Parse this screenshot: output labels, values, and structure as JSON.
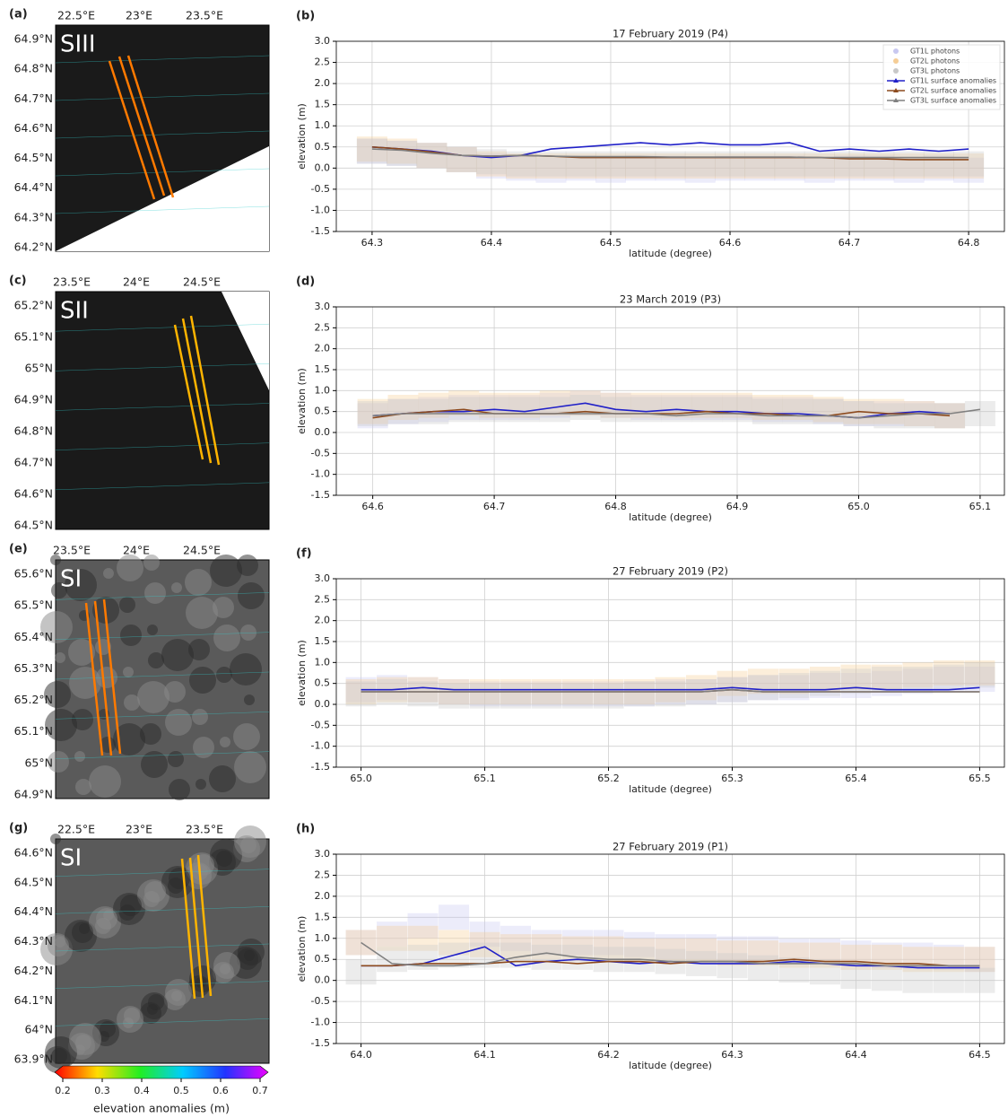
{
  "maps": [
    {
      "label": "(a)",
      "region": "SIII",
      "lon_ticks": [
        "22.5°E",
        "23°E",
        "23.5°E"
      ],
      "lat_ticks": [
        "64.9°N",
        "64.8°N",
        "64.7°N",
        "64.6°N",
        "64.5°N",
        "64.4°N",
        "64.3°N",
        "64.2°N"
      ]
    },
    {
      "label": "(c)",
      "region": "SII",
      "lon_ticks": [
        "23.5°E",
        "24°E",
        "24.5°E"
      ],
      "lat_ticks": [
        "65.2°N",
        "65.1°N",
        "65°N",
        "64.9°N",
        "64.8°N",
        "64.7°N",
        "64.6°N",
        "64.5°N"
      ]
    },
    {
      "label": "(e)",
      "region": "SI",
      "lon_ticks": [
        "23.5°E",
        "24°E",
        "24.5°E"
      ],
      "lat_ticks": [
        "65.6°N",
        "65.5°N",
        "65.4°N",
        "65.3°N",
        "65.2°N",
        "65.1°N",
        "65°N",
        "64.9°N"
      ]
    },
    {
      "label": "(g)",
      "region": "SI",
      "lon_ticks": [
        "22.5°E",
        "23°E",
        "23.5°E"
      ],
      "lat_ticks": [
        "64.6°N",
        "64.5°N",
        "64.4°N",
        "64.3°N",
        "64.2°N",
        "64.1°N",
        "64°N",
        "63.9°N"
      ]
    }
  ],
  "colorbar": {
    "ticks": [
      0.2,
      0.3,
      0.4,
      0.5,
      0.6,
      0.7
    ],
    "range": [
      0.2,
      0.7
    ],
    "label": "elevation anomalies (m)"
  },
  "chart_data": [
    {
      "type": "line",
      "label": "(b)",
      "title": "17 February 2019 (P4)",
      "xlabel": "latitude (degree)",
      "ylabel": "elevation (m)",
      "grid": true,
      "legend": "upper right",
      "x": [
        64.3,
        64.325,
        64.35,
        64.375,
        64.4,
        64.425,
        64.45,
        64.475,
        64.5,
        64.525,
        64.55,
        64.575,
        64.6,
        64.625,
        64.65,
        64.675,
        64.7,
        64.725,
        64.75,
        64.775,
        64.8
      ],
      "xlim": [
        64.27,
        64.83
      ],
      "xticks": [
        64.3,
        64.4,
        64.5,
        64.6,
        64.7,
        64.8
      ],
      "ylim": [
        -1.5,
        3
      ],
      "yticks": [
        -1.5,
        {
          "value": -1,
          "label": "-1.0"
        },
        -0.5,
        {
          "value": 0,
          "label": "0.0"
        },
        0.5,
        {
          "value": 1,
          "label": "1.0"
        },
        1.5,
        {
          "value": 2,
          "label": "2.0"
        },
        2.5,
        {
          "value": 3,
          "label": "3.0"
        }
      ],
      "series": [
        {
          "name": "GT1L photons",
          "kind": "scatter",
          "color": "#c8c8f0",
          "values": [
            0.4,
            0.35,
            0.3,
            0.2,
            0.05,
            0,
            -0.05,
            0,
            -0.05,
            0,
            0,
            -0.05,
            0,
            0,
            0,
            -0.05,
            0,
            0,
            -0.05,
            0,
            -0.05
          ]
        },
        {
          "name": "GT2L photons",
          "kind": "scatter",
          "color": "#f5cd96",
          "values": [
            0.45,
            0.4,
            0.3,
            0.2,
            0.1,
            0.05,
            0.05,
            0.05,
            0.05,
            0.05,
            0.05,
            0.05,
            0.05,
            0.05,
            0.05,
            0.05,
            0.05,
            0.05,
            0.05,
            0.05,
            0.05
          ]
        },
        {
          "name": "GT3L photons",
          "kind": "scatter",
          "color": "#c8c8c8",
          "values": [
            0.4,
            0.35,
            0.3,
            0.2,
            0.15,
            0.1,
            0.1,
            0.1,
            0.1,
            0.1,
            0.1,
            0.1,
            0.1,
            0.1,
            0.1,
            0.1,
            0.1,
            0.1,
            0.1,
            0.1,
            0.1
          ]
        },
        {
          "name": "GT1L surface anomalies",
          "kind": "line",
          "color": "#2020c8",
          "values": [
            0.5,
            0.45,
            0.4,
            0.3,
            0.25,
            0.3,
            0.45,
            0.5,
            0.55,
            0.6,
            0.55,
            0.6,
            0.55,
            0.55,
            0.6,
            0.4,
            0.45,
            0.4,
            0.45,
            0.4,
            0.45
          ]
        },
        {
          "name": "GT2L surface anomalies",
          "kind": "line",
          "color": "#8c4a1e",
          "values": [
            0.5,
            0.45,
            0.38,
            0.3,
            0.28,
            0.3,
            0.28,
            0.25,
            0.25,
            0.25,
            0.25,
            0.25,
            0.25,
            0.25,
            0.25,
            0.25,
            0.22,
            0.22,
            0.2,
            0.2,
            0.2
          ]
        },
        {
          "name": "GT3L surface anomalies",
          "kind": "line",
          "color": "#808080",
          "values": [
            0.45,
            0.42,
            0.35,
            0.3,
            0.28,
            0.3,
            0.28,
            0.27,
            0.27,
            0.27,
            0.26,
            0.26,
            0.26,
            0.26,
            0.26,
            0.25,
            0.25,
            0.25,
            0.25,
            0.25,
            0.25
          ]
        }
      ]
    },
    {
      "type": "line",
      "label": "(d)",
      "title": "23 March 2019 (P3)",
      "xlabel": "latitude (degree)",
      "ylabel": "elevation (m)",
      "grid": true,
      "x": [
        64.6,
        64.625,
        64.65,
        64.675,
        64.7,
        64.725,
        64.75,
        64.775,
        64.8,
        64.825,
        64.85,
        64.875,
        64.9,
        64.925,
        64.95,
        64.975,
        65.0,
        65.025,
        65.05,
        65.075,
        65.1
      ],
      "xlim": [
        64.57,
        65.12
      ],
      "xticks": [
        64.6,
        64.7,
        64.8,
        64.9,
        {
          "value": 65,
          "label": "65.0"
        },
        65.1
      ],
      "ylim": [
        -1.5,
        3
      ],
      "yticks": [
        -1.5,
        {
          "value": -1,
          "label": "-1.0"
        },
        -0.5,
        {
          "value": 0,
          "label": "0.0"
        },
        0.5,
        {
          "value": 1,
          "label": "1.0"
        },
        1.5,
        {
          "value": 2,
          "label": "2.0"
        },
        2.5,
        {
          "value": 3,
          "label": "3.0"
        }
      ],
      "series": [
        {
          "kind": "scatter",
          "color": "#c8c8f0",
          "values": [
            0.4,
            0.5,
            0.55,
            0.6,
            0.6,
            0.6,
            0.65,
            0.7,
            0.65,
            0.6,
            0.6,
            0.6,
            0.6,
            0.55,
            0.55,
            0.5,
            0.45,
            0.45,
            0.45,
            0.4,
            null
          ]
        },
        {
          "kind": "scatter",
          "color": "#f5cd96",
          "values": [
            0.5,
            0.6,
            0.65,
            0.7,
            0.65,
            0.65,
            0.7,
            0.7,
            0.65,
            0.65,
            0.65,
            0.65,
            0.65,
            0.6,
            0.6,
            0.55,
            0.5,
            0.5,
            0.45,
            0.4,
            null
          ]
        },
        {
          "kind": "scatter",
          "color": "#c8c8c8",
          "values": [
            0.45,
            0.5,
            0.5,
            0.55,
            0.55,
            0.55,
            0.55,
            0.6,
            0.55,
            0.55,
            0.55,
            0.55,
            0.55,
            0.5,
            0.5,
            0.5,
            0.45,
            0.4,
            0.4,
            0.4,
            0.45
          ]
        },
        {
          "kind": "line",
          "color": "#2020c8",
          "values": [
            0.4,
            0.45,
            0.5,
            0.5,
            0.55,
            0.5,
            0.6,
            0.7,
            0.55,
            0.5,
            0.55,
            0.5,
            0.5,
            0.45,
            0.45,
            0.4,
            0.35,
            0.45,
            0.5,
            0.45,
            null
          ]
        },
        {
          "kind": "line",
          "color": "#8c4a1e",
          "values": [
            0.35,
            0.45,
            0.5,
            0.55,
            0.45,
            0.45,
            0.45,
            0.5,
            0.45,
            0.45,
            0.45,
            0.5,
            0.45,
            0.45,
            0.4,
            0.4,
            0.5,
            0.45,
            0.45,
            0.4,
            null
          ]
        },
        {
          "kind": "line",
          "color": "#808080",
          "values": [
            0.4,
            0.45,
            0.45,
            0.45,
            0.45,
            0.45,
            0.45,
            0.45,
            0.45,
            0.45,
            0.4,
            0.45,
            0.45,
            0.4,
            0.4,
            0.4,
            0.35,
            0.4,
            0.45,
            0.45,
            0.55
          ]
        }
      ]
    },
    {
      "type": "line",
      "label": "(f)",
      "title": "27 February 2019 (P2)",
      "xlabel": "latitude (degree)",
      "ylabel": "elevation (m)",
      "grid": true,
      "x": [
        65.0,
        65.025,
        65.05,
        65.075,
        65.1,
        65.125,
        65.15,
        65.175,
        65.2,
        65.225,
        65.25,
        65.275,
        65.3,
        65.325,
        65.35,
        65.375,
        65.4,
        65.425,
        65.45,
        65.475,
        65.5
      ],
      "xlim": [
        64.98,
        65.52
      ],
      "xticks": [
        {
          "value": 65,
          "label": "65.0"
        },
        65.1,
        65.2,
        65.3,
        65.4,
        65.5
      ],
      "ylim": [
        -1.5,
        3
      ],
      "yticks": [
        -1.5,
        {
          "value": -1,
          "label": "-1.0"
        },
        -0.5,
        {
          "value": 0,
          "label": "0.0"
        },
        0.5,
        {
          "value": 1,
          "label": "1.0"
        },
        1.5,
        {
          "value": 2,
          "label": "2.0"
        },
        2.5,
        {
          "value": 3,
          "label": "3.0"
        }
      ],
      "series": [
        {
          "kind": "scatter",
          "color": "#c8c8f0",
          "values": [
            0.35,
            0.4,
            0.35,
            0.3,
            0.25,
            0.25,
            0.25,
            0.25,
            0.25,
            0.25,
            0.3,
            0.3,
            0.35,
            0.4,
            0.4,
            0.45,
            0.45,
            0.5,
            0.55,
            0.6,
            0.6
          ]
        },
        {
          "kind": "scatter",
          "color": "#f5cd96",
          "values": [
            0.3,
            0.35,
            0.35,
            0.3,
            0.3,
            0.3,
            0.3,
            0.3,
            0.3,
            0.3,
            0.35,
            0.4,
            0.5,
            0.55,
            0.55,
            0.6,
            0.65,
            0.65,
            0.7,
            0.75,
            0.75
          ]
        },
        {
          "kind": "scatter",
          "color": "#c8c8c8",
          "values": [
            0.25,
            0.3,
            0.25,
            0.2,
            0.2,
            0.2,
            0.2,
            0.2,
            0.2,
            0.25,
            0.25,
            0.3,
            0.35,
            0.4,
            0.45,
            0.5,
            0.55,
            0.6,
            0.6,
            0.65,
            0.7
          ]
        },
        {
          "kind": "line",
          "color": "#2020c8",
          "values": [
            0.35,
            0.35,
            0.4,
            0.35,
            0.35,
            0.35,
            0.35,
            0.35,
            0.35,
            0.35,
            0.35,
            0.35,
            0.4,
            0.35,
            0.35,
            0.35,
            0.4,
            0.35,
            0.35,
            0.35,
            0.4
          ]
        },
        {
          "kind": "line",
          "color": "#8c4a1e",
          "values": [
            0.3,
            0.3,
            0.3,
            0.3,
            0.3,
            0.3,
            0.3,
            0.3,
            0.3,
            0.3,
            0.3,
            0.3,
            0.35,
            0.3,
            0.3,
            0.3,
            0.3,
            0.3,
            0.3,
            0.3,
            0.3
          ]
        },
        {
          "kind": "line",
          "color": "#808080",
          "values": [
            0.3,
            0.3,
            0.3,
            0.3,
            0.3,
            0.3,
            0.3,
            0.3,
            0.3,
            0.3,
            0.3,
            0.3,
            0.35,
            0.3,
            0.3,
            0.3,
            0.3,
            0.3,
            0.3,
            0.3,
            0.3
          ]
        }
      ]
    },
    {
      "type": "line",
      "label": "(h)",
      "title": "27 February 2019 (P1)",
      "xlabel": "latitude (degree)",
      "ylabel": "elevation (m)",
      "grid": true,
      "x": [
        64.0,
        64.025,
        64.05,
        64.075,
        64.1,
        64.125,
        64.15,
        64.175,
        64.2,
        64.225,
        64.25,
        64.275,
        64.3,
        64.325,
        64.35,
        64.375,
        64.4,
        64.425,
        64.45,
        64.475,
        64.5
      ],
      "xlim": [
        63.98,
        64.52
      ],
      "xticks": [
        {
          "value": 64,
          "label": "64.0"
        },
        64.1,
        64.2,
        64.3,
        64.4,
        64.5
      ],
      "ylim": [
        -1.5,
        3
      ],
      "yticks": [
        -1.5,
        {
          "value": -1,
          "label": "-1.0"
        },
        -0.5,
        {
          "value": 0,
          "label": "0.0"
        },
        0.5,
        {
          "value": 1,
          "label": "1.0"
        },
        1.5,
        {
          "value": 2,
          "label": "2.0"
        },
        2.5,
        {
          "value": 3,
          "label": "3.0"
        }
      ],
      "series": [
        {
          "kind": "scatter",
          "color": "#c8c8f0",
          "values": [
            0.9,
            1.1,
            1.3,
            1.5,
            1.1,
            1.0,
            0.9,
            0.9,
            0.9,
            0.85,
            0.8,
            0.8,
            0.75,
            0.75,
            0.7,
            0.7,
            0.65,
            0.6,
            0.6,
            0.55,
            0.5
          ]
        },
        {
          "kind": "scatter",
          "color": "#f5cd96",
          "values": [
            0.9,
            1.0,
            1.0,
            0.9,
            0.85,
            0.8,
            0.8,
            0.75,
            0.75,
            0.7,
            0.7,
            0.7,
            0.65,
            0.65,
            0.6,
            0.6,
            0.55,
            0.55,
            0.5,
            0.5,
            0.5
          ]
        },
        {
          "kind": "scatter",
          "color": "#c8c8c8",
          "values": [
            0.2,
            0.5,
            0.55,
            0.6,
            0.6,
            0.6,
            0.55,
            0.55,
            0.5,
            0.5,
            0.45,
            0.4,
            0.35,
            0.3,
            0.25,
            0.2,
            0.1,
            0.05,
            0,
            0,
            0
          ]
        },
        {
          "kind": "line",
          "color": "#2020c8",
          "values": [
            0.35,
            0.35,
            0.4,
            0.6,
            0.8,
            0.35,
            0.45,
            0.5,
            0.45,
            0.4,
            0.45,
            0.4,
            0.4,
            0.4,
            0.45,
            0.4,
            0.35,
            0.35,
            0.3,
            0.3,
            0.3
          ]
        },
        {
          "kind": "line",
          "color": "#8c4a1e",
          "values": [
            0.35,
            0.35,
            0.4,
            0.4,
            0.4,
            0.45,
            0.45,
            0.4,
            0.45,
            0.45,
            0.4,
            0.45,
            0.45,
            0.45,
            0.5,
            0.45,
            0.45,
            0.4,
            0.4,
            0.35,
            0.35
          ]
        },
        {
          "kind": "line",
          "color": "#808080",
          "values": [
            0.9,
            0.4,
            0.35,
            0.35,
            0.4,
            0.55,
            0.65,
            0.55,
            0.5,
            0.5,
            0.45,
            0.45,
            0.45,
            0.4,
            0.4,
            0.4,
            0.4,
            0.35,
            0.35,
            0.35,
            0.35
          ]
        }
      ]
    }
  ]
}
